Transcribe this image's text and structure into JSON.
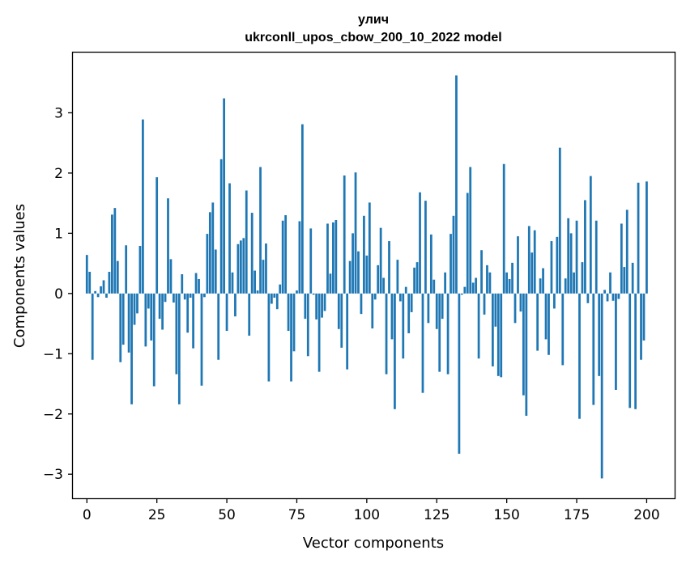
{
  "chart_data": {
    "type": "bar",
    "title": "улич",
    "subtitle": "ukrconll_upos_cbow_200_10_2022 model",
    "xlabel": "Vector components",
    "ylabel": "Components values",
    "xlim": [
      -5,
      210
    ],
    "ylim": [
      -3.4,
      4.0
    ],
    "xticks": [
      0,
      25,
      50,
      75,
      100,
      125,
      150,
      175,
      200
    ],
    "yticks": [
      -3,
      -2,
      -1,
      0,
      1,
      2,
      3
    ],
    "xtick_labels": [
      "0",
      "25",
      "50",
      "75",
      "100",
      "125",
      "150",
      "175",
      "200"
    ],
    "ytick_labels": [
      "−3",
      "−2",
      "−1",
      "0",
      "1",
      "2",
      "3"
    ],
    "bar_color": "#1f77b4",
    "grid": false,
    "values": [
      0.64,
      0.36,
      -1.1,
      0.04,
      -0.06,
      0.12,
      0.22,
      -0.07,
      0.36,
      1.31,
      1.42,
      0.54,
      -1.14,
      -0.85,
      0.8,
      -0.98,
      -1.84,
      -0.52,
      -0.33,
      0.79,
      2.89,
      -0.88,
      -0.25,
      -0.78,
      -1.54,
      1.93,
      -0.42,
      -0.6,
      -0.14,
      1.58,
      0.57,
      -0.15,
      -1.34,
      -1.84,
      0.32,
      -0.1,
      -0.65,
      -0.07,
      -0.91,
      0.34,
      0.24,
      -1.53,
      -0.06,
      0.99,
      1.35,
      1.51,
      0.73,
      -1.1,
      2.23,
      3.24,
      -0.62,
      1.83,
      0.35,
      -0.38,
      0.82,
      0.88,
      0.92,
      1.71,
      -0.7,
      1.34,
      0.38,
      0.05,
      2.1,
      0.56,
      0.83,
      -1.46,
      -0.17,
      -0.07,
      -0.26,
      0.15,
      1.21,
      1.3,
      -0.62,
      -1.46,
      -0.96,
      0.05,
      1.2,
      2.81,
      -0.42,
      -1.04,
      1.08,
      -0.02,
      -0.43,
      -1.3,
      -0.4,
      -0.29,
      1.16,
      0.33,
      1.18,
      1.22,
      -0.59,
      -0.9,
      1.96,
      -1.26,
      0.54,
      1.0,
      2.01,
      0.7,
      -0.34,
      1.29,
      0.63,
      1.51,
      -0.58,
      -0.1,
      0.47,
      1.09,
      0.26,
      -1.34,
      0.87,
      -0.76,
      -1.92,
      0.56,
      -0.13,
      -1.08,
      0.11,
      -0.66,
      -0.31,
      0.43,
      0.52,
      1.68,
      -1.65,
      1.54,
      -0.49,
      0.98,
      0.23,
      -0.59,
      -1.3,
      -0.42,
      0.35,
      -1.34,
      0.99,
      1.29,
      3.62,
      -2.66,
      -0.02,
      0.11,
      1.67,
      2.1,
      0.18,
      0.26,
      -1.08,
      0.72,
      -0.35,
      0.47,
      0.35,
      -1.21,
      -0.55,
      -1.37,
      -1.39,
      2.15,
      0.35,
      0.24,
      0.51,
      -0.49,
      0.95,
      -0.3,
      -1.69,
      -2.03,
      1.12,
      0.68,
      1.05,
      -0.95,
      0.25,
      0.42,
      -0.76,
      -1.02,
      0.87,
      -0.25,
      0.94,
      2.42,
      -1.19,
      0.25,
      1.25,
      1.0,
      0.35,
      1.21,
      -2.08,
      0.52,
      1.55,
      -0.16,
      1.95,
      -1.85,
      1.21,
      -1.37,
      -3.07,
      0.06,
      -0.13,
      0.35,
      -0.12,
      -1.6,
      -0.09,
      1.16,
      0.44,
      1.39,
      -1.9,
      0.51,
      -1.92,
      1.84,
      -1.1,
      -0.78,
      1.86
    ]
  }
}
